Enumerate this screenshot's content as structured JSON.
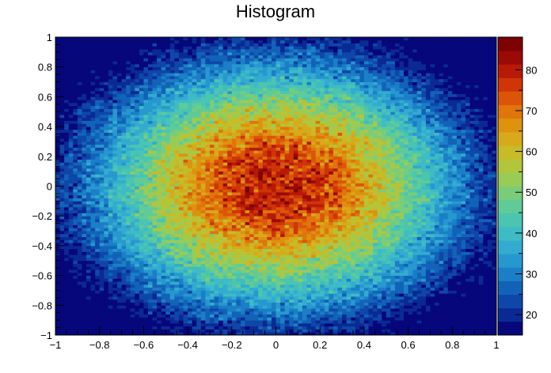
{
  "chart_data": {
    "type": "heatmap",
    "title": "Histogram",
    "xlabel": "",
    "ylabel": "",
    "xlim": [
      -1,
      1
    ],
    "ylim": [
      -1,
      1
    ],
    "bins": [
      100,
      100
    ],
    "distribution": {
      "kind": "gaussian-2d",
      "mean": [
        0,
        0
      ],
      "sigma": [
        0.6,
        0.6
      ],
      "peak": 80,
      "noise": 8
    },
    "x_ticks": [
      "−1",
      "−0.8",
      "−0.6",
      "−0.4",
      "−0.2",
      "0",
      "0.2",
      "0.4",
      "0.6",
      "0.8",
      "1"
    ],
    "x_tick_values": [
      -1,
      -0.8,
      -0.6,
      -0.4,
      -0.2,
      0,
      0.2,
      0.4,
      0.6,
      0.8,
      1
    ],
    "y_ticks": [
      "−1",
      "−0.8",
      "−0.6",
      "−0.4",
      "−0.2",
      "0",
      "0.2",
      "0.4",
      "0.6",
      "0.8",
      "1"
    ],
    "y_tick_values": [
      -1,
      -0.8,
      -0.6,
      -0.4,
      -0.2,
      0,
      0.2,
      0.4,
      0.6,
      0.8,
      1
    ],
    "colorbar": {
      "range": [
        15,
        88
      ],
      "ticks": [
        "20",
        "30",
        "40",
        "50",
        "60",
        "70",
        "80"
      ],
      "tick_values": [
        20,
        30,
        40,
        50,
        60,
        70,
        80
      ],
      "palette": [
        "#06077a",
        "#0a2a93",
        "#0e47a9",
        "#1263b8",
        "#1a7fc6",
        "#2798cf",
        "#33abd0",
        "#3ebbc4",
        "#4bc5b0",
        "#5fcb98",
        "#7bcc79",
        "#99cc57",
        "#b2c63b",
        "#c7bb28",
        "#d6aa1a",
        "#dd9210",
        "#df750b",
        "#db5508",
        "#cf3507",
        "#b81a07",
        "#9a0a06",
        "#7c0204"
      ]
    },
    "grid": false
  }
}
